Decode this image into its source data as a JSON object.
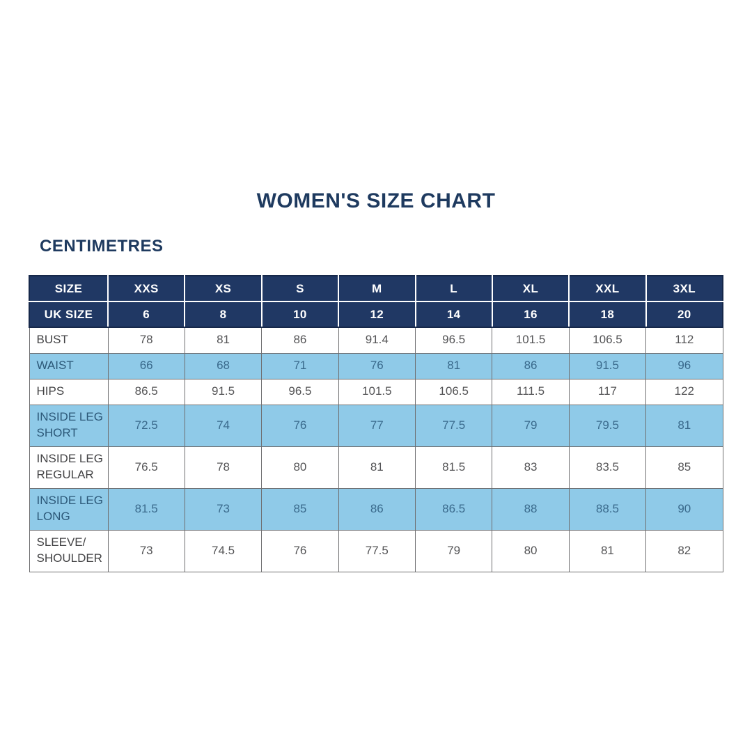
{
  "page": {
    "title": "WOMEN'S SIZE CHART",
    "unit_label": "CENTIMETRES"
  },
  "colors": {
    "header_navy": "#203864",
    "header_text": "#ffffff",
    "highlight_blue": "#8fcae8",
    "title_navy": "#1e3a5f",
    "body_text_gray": "#545456",
    "highlight_text_navy": "#3a6a8c"
  },
  "chart_data": {
    "type": "table",
    "title": "WOMEN'S SIZE CHART",
    "unit": "CENTIMETRES",
    "header": {
      "size_label": "SIZE",
      "uk_size_label": "UK SIZE",
      "sizes": [
        "XXS",
        "XS",
        "S",
        "M",
        "L",
        "XL",
        "XXL",
        "3XL"
      ],
      "uk_sizes": [
        6,
        8,
        10,
        12,
        14,
        16,
        18,
        20
      ]
    },
    "rows": [
      {
        "label": "BUST",
        "highlight": false,
        "values": [
          78,
          81,
          86,
          91.4,
          96.5,
          101.5,
          106.5,
          112
        ]
      },
      {
        "label": "WAIST",
        "highlight": true,
        "values": [
          66,
          68,
          71,
          76,
          81,
          86,
          91.5,
          96
        ]
      },
      {
        "label": "HIPS",
        "highlight": false,
        "values": [
          86.5,
          91.5,
          96.5,
          101.5,
          106.5,
          111.5,
          117,
          122
        ]
      },
      {
        "label": "INSIDE LEG SHORT",
        "highlight": true,
        "values": [
          72.5,
          74,
          76,
          77,
          77.5,
          79,
          79.5,
          81
        ]
      },
      {
        "label": "INSIDE LEG REGULAR",
        "highlight": false,
        "values": [
          76.5,
          78,
          80,
          81,
          81.5,
          83,
          83.5,
          85
        ]
      },
      {
        "label": "INSIDE LEG LONG",
        "highlight": true,
        "values": [
          81.5,
          73,
          85,
          86,
          86.5,
          88,
          88.5,
          90
        ]
      },
      {
        "label": "SLEEVE/ SHOULDER",
        "highlight": false,
        "values": [
          73,
          74.5,
          76,
          77.5,
          79,
          80,
          81,
          82
        ]
      }
    ]
  }
}
